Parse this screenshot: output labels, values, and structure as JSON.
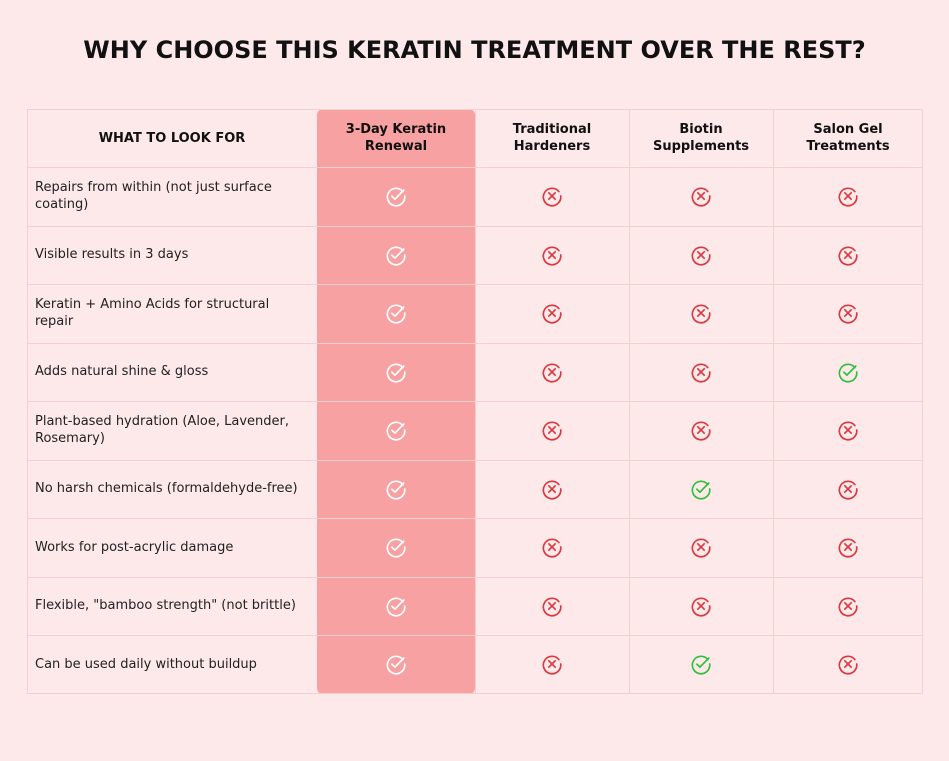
{
  "title": "WHY CHOOSE THIS KERATIN TREATMENT OVER THE REST?",
  "colors": {
    "background": "#fde9e9",
    "highlight": "#f7a1a3",
    "check_white": "#ffffff",
    "check_green": "#2fbf3a",
    "cross_red": "#d9383f"
  },
  "table": {
    "header_label": "WHAT TO LOOK FOR",
    "columns": [
      "3-Day Keratin\nRenewal",
      "Traditional\nHardeners",
      "Biotin\nSupplements",
      "Salon Gel\nTreatments"
    ],
    "rows": [
      {
        "label": "Repairs from within (not just surface coating)",
        "marks": [
          "check",
          "cross",
          "cross",
          "cross"
        ]
      },
      {
        "label": "Visible results in 3 days",
        "marks": [
          "check",
          "cross",
          "cross",
          "cross"
        ]
      },
      {
        "label": "Keratin + Amino Acids for structural repair",
        "marks": [
          "check",
          "cross",
          "cross",
          "cross"
        ]
      },
      {
        "label": "Adds natural shine & gloss",
        "marks": [
          "check",
          "cross",
          "cross",
          "check"
        ]
      },
      {
        "label": "Plant-based hydration (Aloe, Lavender, Rosemary)",
        "marks": [
          "check",
          "cross",
          "cross",
          "cross"
        ]
      },
      {
        "label": "No harsh chemicals (formaldehyde-free)",
        "marks": [
          "check",
          "cross",
          "check",
          "cross"
        ]
      },
      {
        "label": "Works for post-acrylic damage",
        "marks": [
          "check",
          "cross",
          "cross",
          "cross"
        ]
      },
      {
        "label": "Flexible, \"bamboo strength\" (not brittle)",
        "marks": [
          "check",
          "cross",
          "cross",
          "cross"
        ]
      },
      {
        "label": "Can be used daily without buildup",
        "marks": [
          "check",
          "cross",
          "check",
          "cross"
        ]
      }
    ]
  }
}
